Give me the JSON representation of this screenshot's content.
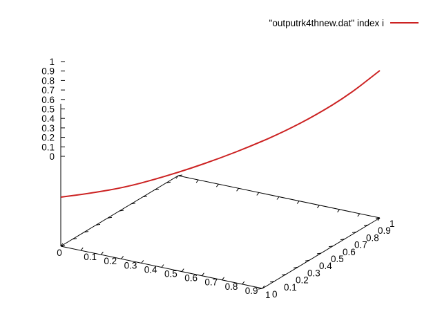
{
  "chart_data": {
    "type": "line",
    "projection": "3d",
    "legend": {
      "position": "top-right",
      "label": "\"outputrk4thnew.dat\" index i"
    },
    "axes": {
      "x": {
        "range": [
          0,
          1
        ],
        "ticks": [
          "0",
          "0.1",
          "0.2",
          "0.3",
          "0.4",
          "0.5",
          "0.6",
          "0.7",
          "0.8",
          "0.9",
          "1"
        ]
      },
      "y": {
        "range": [
          0,
          1
        ],
        "ticks": [
          "0",
          "0.1",
          "0.2",
          "0.3",
          "0.4",
          "0.5",
          "0.6",
          "0.7",
          "0.8",
          "0.9",
          "1"
        ]
      },
      "z": {
        "range": [
          0,
          1
        ],
        "ticks": [
          "0",
          "0.1",
          "0.2",
          "0.3",
          "0.4",
          "0.5",
          "0.6",
          "0.7",
          "0.8",
          "0.9",
          "1"
        ]
      }
    },
    "grid": false,
    "series": [
      {
        "color": "#cc2222",
        "x": [
          0,
          0.1,
          0.2,
          0.3,
          0.4,
          0.5,
          0.6,
          0.7,
          0.8,
          0.9,
          1.0
        ],
        "y": [
          0,
          0.1,
          0.2,
          0.3,
          0.4,
          0.5,
          0.6,
          0.7,
          0.8,
          0.9,
          1.0
        ],
        "z": [
          0.01,
          0.02,
          0.04,
          0.08,
          0.13,
          0.19,
          0.26,
          0.34,
          0.44,
          0.56,
          0.72
        ]
      }
    ]
  }
}
